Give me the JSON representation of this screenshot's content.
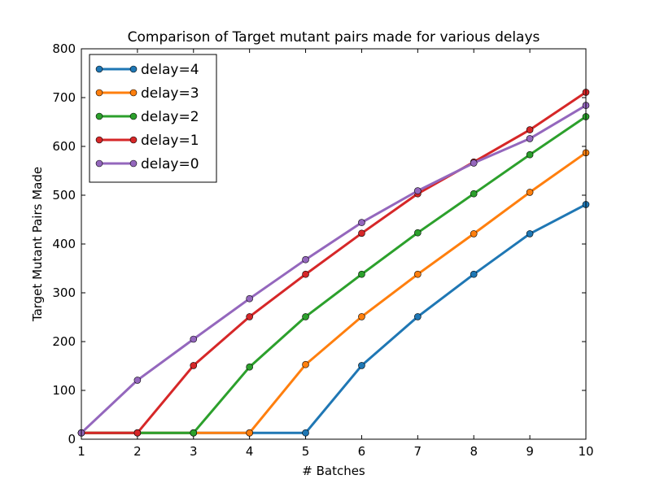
{
  "chart_data": {
    "type": "line",
    "title": "Comparison of Target mutant pairs made for various delays",
    "xlabel": "# Batches",
    "ylabel": "Target Mutant Pairs Made",
    "x": [
      1,
      2,
      3,
      4,
      5,
      6,
      7,
      8,
      9,
      10
    ],
    "xlim": [
      1,
      10
    ],
    "ylim": [
      0,
      800
    ],
    "xticks": [
      "1",
      "2",
      "3",
      "4",
      "5",
      "6",
      "7",
      "8",
      "9",
      "10"
    ],
    "yticks": [
      "0",
      "100",
      "200",
      "300",
      "400",
      "500",
      "600",
      "700",
      "800"
    ],
    "grid": false,
    "legend_position": "top-left",
    "series": [
      {
        "name": "delay=4",
        "color": "#1f77b4",
        "values": [
          13,
          13,
          13,
          13,
          13,
          151,
          251,
          338,
          421,
          481
        ]
      },
      {
        "name": "delay=3",
        "color": "#ff7f0e",
        "values": [
          13,
          13,
          13,
          13,
          153,
          251,
          338,
          421,
          506,
          587
        ]
      },
      {
        "name": "delay=2",
        "color": "#2ca02c",
        "values": [
          13,
          13,
          13,
          148,
          251,
          338,
          423,
          503,
          583,
          661
        ]
      },
      {
        "name": "delay=1",
        "color": "#d62728",
        "values": [
          13,
          13,
          151,
          251,
          338,
          422,
          503,
          568,
          634,
          711
        ]
      },
      {
        "name": "delay=0",
        "color": "#9467bd",
        "values": [
          13,
          121,
          205,
          288,
          368,
          444,
          509,
          566,
          616,
          684
        ]
      }
    ]
  }
}
